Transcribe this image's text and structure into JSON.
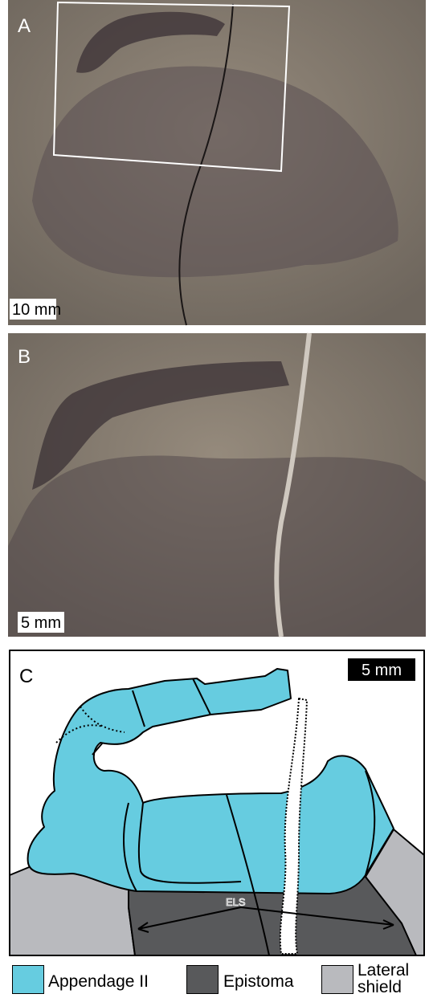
{
  "panels": [
    {
      "label": "A",
      "scale_bar": "10 mm"
    },
    {
      "label": "B",
      "scale_bar": "5 mm"
    },
    {
      "label": "C",
      "scale_bar": "5 mm",
      "annotation": "ELS"
    }
  ],
  "legend": [
    {
      "label": "Appendage II",
      "color": "#66cce0"
    },
    {
      "label": "Epistoma",
      "color": "#58595b"
    },
    {
      "label": "Lateral shield",
      "color": "#b9babe"
    }
  ]
}
